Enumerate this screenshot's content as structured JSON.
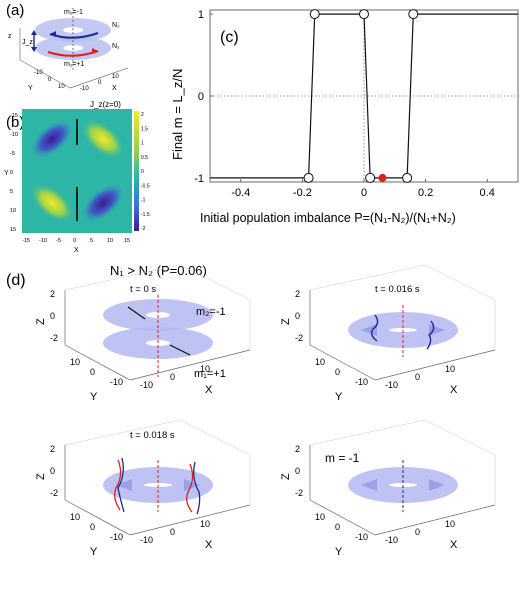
{
  "panel_a": {
    "label": "(a)",
    "axis_z": "z",
    "axis_x": "X",
    "axis_y": "Y",
    "ticks_x": [
      "-10",
      "0",
      "10"
    ],
    "ticks_y": [
      "-10",
      "0",
      "10"
    ],
    "label_m_top": "m₂=-1",
    "label_m_bot": "m₁=+1",
    "label_n_top": "N₂",
    "label_n_bot": "N₁",
    "label_jz": "J_z"
  },
  "panel_b": {
    "label": "(b)",
    "title": "J_z(z=0)",
    "xlabel": "X",
    "ylabel": "Y",
    "xticks": [
      "-15",
      "-10",
      "-5",
      "0",
      "5",
      "10",
      "15"
    ],
    "yticks": [
      "-15",
      "-10",
      "-5",
      "0",
      "5",
      "10",
      "15"
    ],
    "colorbar_ticks": [
      "2",
      "1.5",
      "1",
      "0.5",
      "0",
      "-0.5",
      "-1",
      "-1.5",
      "-2"
    ],
    "colors": {
      "high": "#f5e62a",
      "mid": "#2db6a6",
      "low": "#3a1c8e"
    }
  },
  "panel_c": {
    "label": "(c)",
    "ylabel": "Final  m = L_z/N",
    "xlabel": "Initial population imbalance P=(N₁-N₂)/(N₁+N₂)",
    "chart_data": {
      "type": "line",
      "x": [
        -0.5,
        -0.18,
        -0.16,
        0.0,
        0.02,
        0.06,
        0.14,
        0.16,
        0.5
      ],
      "y": [
        -1,
        -1,
        1,
        1,
        -1,
        -1,
        -1,
        1,
        1
      ],
      "markers_x": [
        -0.18,
        -0.16,
        0.0,
        0.02,
        0.14,
        0.16
      ],
      "markers_y": [
        -1,
        1,
        1,
        -1,
        -1,
        1
      ],
      "highlight": {
        "x": 0.06,
        "y": -1,
        "color": "#e0201c"
      },
      "xlim": [
        -0.5,
        0.5
      ],
      "ylim": [
        -1.05,
        1.05
      ],
      "xticks": [
        "-0.4",
        "-0.2",
        "0",
        "0.2",
        "0.4"
      ],
      "yticks": [
        "1",
        "0",
        "-1"
      ]
    }
  },
  "panel_d": {
    "label": "(d)",
    "heading": "N₁ > N₂ (P=0.06)",
    "snapshots": [
      {
        "time": "t = 0 s",
        "m2": "m₂=-1",
        "m1": "m₁=+1"
      },
      {
        "time": "t = 0.016 s"
      },
      {
        "time": "t = 0.018 s"
      },
      {
        "time": "m = -1"
      }
    ],
    "axis_x": "X",
    "axis_y": "Y",
    "axis_z": "Z",
    "xticks": [
      "-10",
      "0",
      "10"
    ],
    "yticks": [
      "10",
      "0",
      "-10"
    ],
    "zticks": [
      "2",
      "0",
      "-2"
    ]
  }
}
